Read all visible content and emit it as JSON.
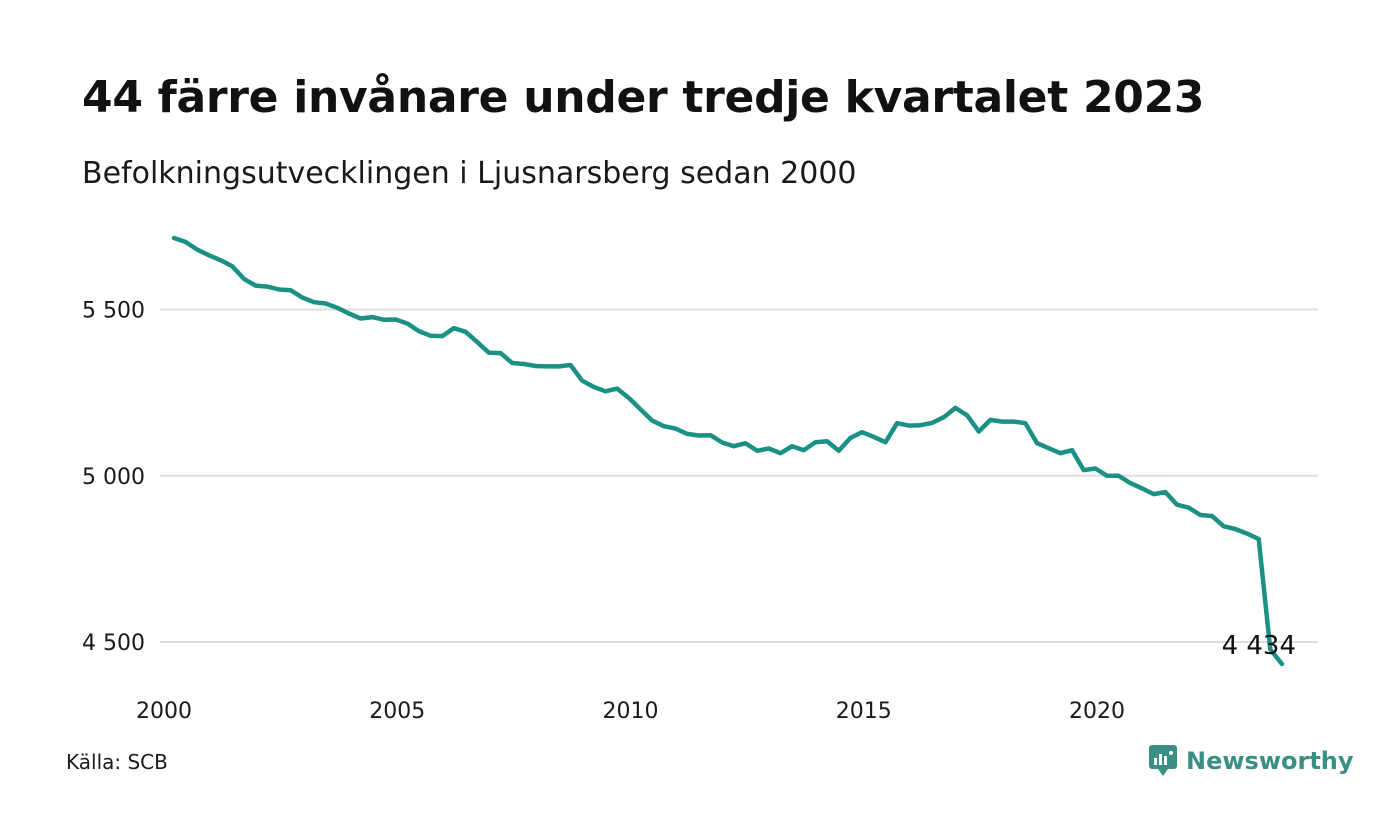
{
  "header": {
    "title": "44 färre invånare under tredje kvartalet 2023",
    "subtitle": "Befolkningsutvecklingen i Ljusnarsberg sedan 2000"
  },
  "footer": {
    "source": "Källa: SCB",
    "brand": "Newsworthy",
    "brand_icon": "newsworthy-logo-icon"
  },
  "colors": {
    "line": "#1a9184",
    "grid": "#dddddd",
    "brand": "#3a8f84",
    "text": "#111111"
  },
  "chart_data": {
    "type": "line",
    "title": "44 färre invånare under tredje kvartalet 2023",
    "subtitle": "Befolkningsutvecklingen i Ljusnarsberg sedan 2000",
    "xlabel": "",
    "ylabel": "",
    "x_ticks": [
      "2000",
      "2005",
      "2010",
      "2015",
      "2020"
    ],
    "x_tick_values": [
      2000,
      2005,
      2010,
      2015,
      2020
    ],
    "y_ticks": [
      "4 500",
      "5 000",
      "5 500"
    ],
    "y_tick_values": [
      4500,
      5000,
      5500
    ],
    "xlim": [
      2000,
      2023.75
    ],
    "ylim": [
      4434,
      5715
    ],
    "grid": "horizontal",
    "end_label": "4 434",
    "x": [
      2000.0,
      2000.25,
      2000.5,
      2000.75,
      2001.0,
      2001.25,
      2001.5,
      2001.75,
      2002.0,
      2002.25,
      2002.5,
      2002.75,
      2003.0,
      2003.25,
      2003.5,
      2003.75,
      2004.0,
      2004.25,
      2004.5,
      2004.75,
      2005.0,
      2005.25,
      2005.5,
      2005.75,
      2006.0,
      2006.25,
      2006.5,
      2006.75,
      2007.0,
      2007.25,
      2007.5,
      2007.75,
      2008.0,
      2008.25,
      2008.5,
      2008.75,
      2009.0,
      2009.25,
      2009.5,
      2009.75,
      2010.0,
      2010.25,
      2010.5,
      2010.75,
      2011.0,
      2011.25,
      2011.5,
      2011.75,
      2012.0,
      2012.25,
      2012.5,
      2012.75,
      2013.0,
      2013.25,
      2013.5,
      2013.75,
      2014.0,
      2014.25,
      2014.5,
      2014.75,
      2015.0,
      2015.25,
      2015.5,
      2015.75,
      2016.0,
      2016.25,
      2016.5,
      2016.75,
      2017.0,
      2017.25,
      2017.5,
      2017.75,
      2018.0,
      2018.25,
      2018.5,
      2018.75,
      2019.0,
      2019.25,
      2019.5,
      2019.75,
      2020.0,
      2020.25,
      2020.5,
      2020.75,
      2021.0,
      2021.25,
      2021.5,
      2021.75,
      2022.0,
      2022.25,
      2022.5,
      2022.75,
      2023.0,
      2023.25,
      2023.5,
      2023.75
    ],
    "series": [
      {
        "values": [
          5715,
          5703,
          5680,
          5663,
          5648,
          5630,
          5592,
          5572,
          5569,
          5560,
          5558,
          5536,
          5522,
          5518,
          5505,
          5488,
          5473,
          5477,
          5469,
          5470,
          5458,
          5435,
          5421,
          5420,
          5444,
          5433,
          5402,
          5370,
          5369,
          5339,
          5336,
          5330,
          5329,
          5329,
          5333,
          5286,
          5267,
          5254,
          5262,
          5234,
          5200,
          5166,
          5149,
          5142,
          5126,
          5121,
          5122,
          5100,
          5089,
          5098,
          5075,
          5082,
          5068,
          5089,
          5077,
          5101,
          5104,
          5075,
          5114,
          5131,
          5117,
          5101,
          5158,
          5151,
          5152,
          5159,
          5176,
          5204,
          5182,
          5133,
          5168,
          5163,
          5163,
          5158,
          5098,
          5083,
          5068,
          5077,
          5017,
          5022,
          5000,
          5000,
          4978,
          4962,
          4945,
          4951,
          4913,
          4904,
          4882,
          4879,
          4848,
          4840,
          4826,
          4810,
          4478,
          4434
        ]
      }
    ]
  }
}
